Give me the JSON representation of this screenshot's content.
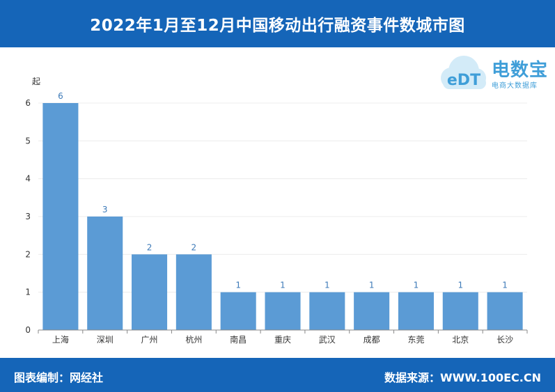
{
  "header": {
    "title": "2022年1月至12月中国移动出行融资事件数城市图"
  },
  "logo": {
    "brand": "电数宝",
    "tagline": "电商大数据库",
    "mark_text": "eDT"
  },
  "footer": {
    "left": "图表编制：网经社",
    "right": "数据来源：WWW.100EC.CN"
  },
  "colors": {
    "header_bg": "#1565b8",
    "bar": "#5b9bd5",
    "label": "#3d7ab8"
  },
  "chart_data": {
    "type": "bar",
    "ylabel": "起",
    "categories": [
      "上海",
      "深圳",
      "广州",
      "杭州",
      "南昌",
      "重庆",
      "武汉",
      "成都",
      "东莞",
      "北京",
      "长沙"
    ],
    "values": [
      6,
      3,
      2,
      2,
      1,
      1,
      1,
      1,
      1,
      1,
      1
    ],
    "ylim": [
      0,
      6
    ],
    "yticks": [
      0,
      1,
      2,
      3,
      4,
      5,
      6
    ],
    "grid": true
  }
}
